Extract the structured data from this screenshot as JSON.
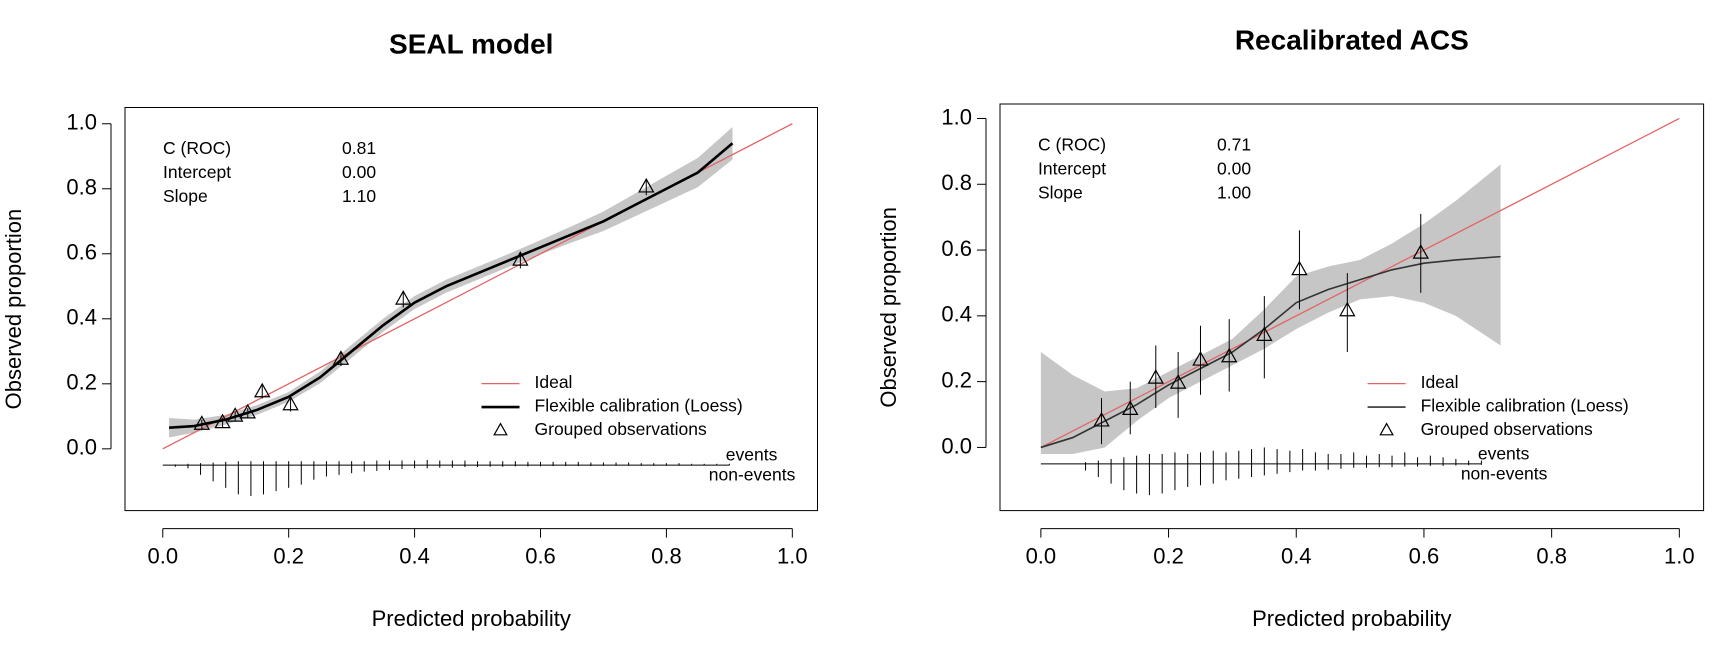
{
  "chart_data": [
    {
      "type": "calibration",
      "title": "SEAL model",
      "xlabel": "Predicted probability",
      "ylabel": "Observed proportion",
      "xlim": [
        -0.06,
        1.04
      ],
      "ylim": [
        -0.19,
        1.05
      ],
      "xticks": [
        {
          "value": 0,
          "label": "0.0"
        },
        0.2,
        0.4,
        0.6,
        0.8,
        {
          "value": 1,
          "label": "1.0"
        }
      ],
      "yticks": [
        {
          "value": 0,
          "label": "0.0"
        },
        0.2,
        0.4,
        0.6,
        0.8,
        {
          "value": 1,
          "label": "1.0"
        }
      ],
      "legend": "bottom-right",
      "stats": [
        [
          "C (ROC)",
          "0.81"
        ],
        [
          "Intercept",
          "0.00"
        ],
        [
          "Slope",
          "1.10"
        ]
      ],
      "series": [
        {
          "name": "Ideal",
          "color": "#e36464",
          "x": [
            0,
            1
          ],
          "values": [
            0,
            1
          ]
        },
        {
          "name": "Flexible calibration (Loess)",
          "color": "#000000",
          "band_color": "#c6c6c6",
          "x": [
            0.01,
            0.05,
            0.1,
            0.15,
            0.2,
            0.25,
            0.3,
            0.35,
            0.4,
            0.45,
            0.5,
            0.55,
            0.6,
            0.65,
            0.7,
            0.75,
            0.8,
            0.85,
            0.905
          ],
          "values": [
            0.065,
            0.07,
            0.09,
            0.12,
            0.16,
            0.22,
            0.3,
            0.38,
            0.45,
            0.5,
            0.54,
            0.58,
            0.62,
            0.66,
            0.7,
            0.75,
            0.8,
            0.85,
            0.94
          ],
          "lower": [
            0.035,
            0.05,
            0.075,
            0.105,
            0.145,
            0.202,
            0.28,
            0.36,
            0.43,
            0.48,
            0.52,
            0.56,
            0.598,
            0.635,
            0.67,
            0.715,
            0.76,
            0.805,
            0.89
          ],
          "upper": [
            0.095,
            0.09,
            0.105,
            0.135,
            0.175,
            0.238,
            0.32,
            0.4,
            0.47,
            0.52,
            0.56,
            0.6,
            0.642,
            0.685,
            0.73,
            0.785,
            0.84,
            0.895,
            0.99
          ]
        },
        {
          "name": "Grouped observations",
          "color": "#000000",
          "x": [
            0.062,
            0.095,
            0.115,
            0.135,
            0.158,
            0.203,
            0.283,
            0.382,
            0.568,
            0.768
          ],
          "values": [
            0.075,
            0.08,
            0.1,
            0.11,
            0.175,
            0.135,
            0.275,
            0.46,
            0.58,
            0.805
          ],
          "ci_lower": [
            0.06,
            0.065,
            0.085,
            0.095,
            0.155,
            0.115,
            0.255,
            0.435,
            0.555,
            0.78
          ],
          "ci_upper": [
            0.09,
            0.095,
            0.115,
            0.125,
            0.195,
            0.155,
            0.295,
            0.485,
            0.605,
            0.83
          ]
        }
      ],
      "spike_labels": [
        "events",
        "non-events"
      ],
      "spikes": {
        "baseline": -0.05,
        "x": [
          0.02,
          0.04,
          0.06,
          0.08,
          0.1,
          0.12,
          0.14,
          0.16,
          0.18,
          0.2,
          0.22,
          0.24,
          0.26,
          0.28,
          0.3,
          0.32,
          0.34,
          0.36,
          0.38,
          0.4,
          0.42,
          0.44,
          0.46,
          0.48,
          0.5,
          0.52,
          0.54,
          0.56,
          0.58,
          0.6,
          0.62,
          0.64,
          0.66,
          0.68,
          0.7,
          0.72,
          0.74,
          0.76,
          0.78,
          0.8,
          0.82,
          0.84,
          0.86,
          0.88,
          0.9
        ],
        "events": [
          0.002,
          0.004,
          0.006,
          0.008,
          0.01,
          0.012,
          0.012,
          0.012,
          0.012,
          0.012,
          0.012,
          0.012,
          0.012,
          0.012,
          0.012,
          0.012,
          0.014,
          0.014,
          0.014,
          0.014,
          0.016,
          0.014,
          0.014,
          0.014,
          0.012,
          0.012,
          0.012,
          0.012,
          0.01,
          0.01,
          0.01,
          0.01,
          0.01,
          0.008,
          0.008,
          0.008,
          0.008,
          0.006,
          0.006,
          0.006,
          0.006,
          0.004,
          0.004,
          0.004,
          0.004
        ],
        "nonevents": [
          0.005,
          0.01,
          0.03,
          0.05,
          0.07,
          0.09,
          0.095,
          0.09,
          0.08,
          0.07,
          0.06,
          0.045,
          0.035,
          0.03,
          0.025,
          0.02,
          0.018,
          0.015,
          0.012,
          0.01,
          0.01,
          0.008,
          0.008,
          0.006,
          0.006,
          0.005,
          0.005,
          0.004,
          0.004,
          0.004,
          0.003,
          0.003,
          0.003,
          0.003,
          0.002,
          0.002,
          0.002,
          0.002,
          0.002,
          0.002,
          0.002,
          0.001,
          0.001,
          0.001,
          0.001
        ]
      }
    },
    {
      "type": "calibration",
      "title": "Recalibrated ACS",
      "xlabel": "Predicted probability",
      "ylabel": "Observed proportion",
      "xlim": [
        -0.064,
        1.038
      ],
      "ylim": [
        -0.192,
        1.044
      ],
      "xticks": [
        {
          "value": 0,
          "label": "0.0"
        },
        0.2,
        0.4,
        0.6,
        0.8,
        {
          "value": 1,
          "label": "1.0"
        }
      ],
      "yticks": [
        {
          "value": 0,
          "label": "0.0"
        },
        0.2,
        0.4,
        0.6,
        0.8,
        {
          "value": 1,
          "label": "1.0"
        }
      ],
      "legend": "bottom-right",
      "stats": [
        [
          "C (ROC)",
          "0.71"
        ],
        [
          "Intercept",
          "0.00"
        ],
        [
          "Slope",
          "1.00"
        ]
      ],
      "series": [
        {
          "name": "Ideal",
          "color": "#e36464",
          "x": [
            0,
            1
          ],
          "values": [
            0,
            1
          ]
        },
        {
          "name": "Flexible calibration (Loess)",
          "color": "#333333",
          "band_color": "#c6c6c6",
          "x": [
            0,
            0.05,
            0.1,
            0.15,
            0.2,
            0.25,
            0.3,
            0.35,
            0.4,
            0.45,
            0.5,
            0.55,
            0.6,
            0.65,
            0.72
          ],
          "values": [
            0,
            0.03,
            0.08,
            0.13,
            0.19,
            0.24,
            0.29,
            0.36,
            0.44,
            0.48,
            0.51,
            0.54,
            0.56,
            0.57,
            0.58
          ],
          "lower": [
            -0.02,
            -0.02,
            0,
            0.08,
            0.15,
            0.2,
            0.25,
            0.3,
            0.36,
            0.41,
            0.45,
            0.46,
            0.44,
            0.4,
            0.31
          ],
          "upper": [
            0.29,
            0.22,
            0.17,
            0.18,
            0.23,
            0.28,
            0.33,
            0.42,
            0.52,
            0.55,
            0.57,
            0.62,
            0.68,
            0.75,
            0.86
          ]
        },
        {
          "name": "Grouped observations",
          "color": "#000000",
          "x": [
            0.095,
            0.14,
            0.18,
            0.215,
            0.25,
            0.295,
            0.35,
            0.405,
            0.48,
            0.595
          ],
          "values": [
            0.08,
            0.115,
            0.21,
            0.195,
            0.265,
            0.275,
            0.34,
            0.54,
            0.415,
            0.59
          ],
          "ci_lower": [
            0.01,
            0.04,
            0.12,
            0.09,
            0.16,
            0.17,
            0.21,
            0.42,
            0.29,
            0.47
          ],
          "ci_upper": [
            0.15,
            0.2,
            0.31,
            0.29,
            0.37,
            0.39,
            0.46,
            0.66,
            0.53,
            0.71
          ]
        }
      ],
      "spike_labels": [
        "events",
        "non-events"
      ],
      "spikes": {
        "baseline": -0.05,
        "x": [
          0.07,
          0.09,
          0.11,
          0.13,
          0.15,
          0.17,
          0.19,
          0.21,
          0.23,
          0.25,
          0.27,
          0.29,
          0.31,
          0.33,
          0.35,
          0.37,
          0.39,
          0.41,
          0.43,
          0.45,
          0.47,
          0.49,
          0.51,
          0.53,
          0.55,
          0.57,
          0.59,
          0.61,
          0.63,
          0.65,
          0.67,
          0.69
        ],
        "events": [
          0.005,
          0.01,
          0.015,
          0.02,
          0.025,
          0.03,
          0.03,
          0.035,
          0.03,
          0.035,
          0.04,
          0.035,
          0.04,
          0.045,
          0.05,
          0.045,
          0.04,
          0.045,
          0.035,
          0.03,
          0.03,
          0.035,
          0.025,
          0.03,
          0.025,
          0.035,
          0.02,
          0.025,
          0.02,
          0.015,
          0.01,
          0.01
        ],
        "nonevents": [
          0.02,
          0.04,
          0.06,
          0.08,
          0.09,
          0.095,
          0.09,
          0.08,
          0.07,
          0.065,
          0.06,
          0.05,
          0.045,
          0.04,
          0.035,
          0.03,
          0.025,
          0.02,
          0.02,
          0.018,
          0.015,
          0.012,
          0.012,
          0.01,
          0.01,
          0.008,
          0.008,
          0.006,
          0.006,
          0.005,
          0.004,
          0.003
        ]
      }
    }
  ]
}
